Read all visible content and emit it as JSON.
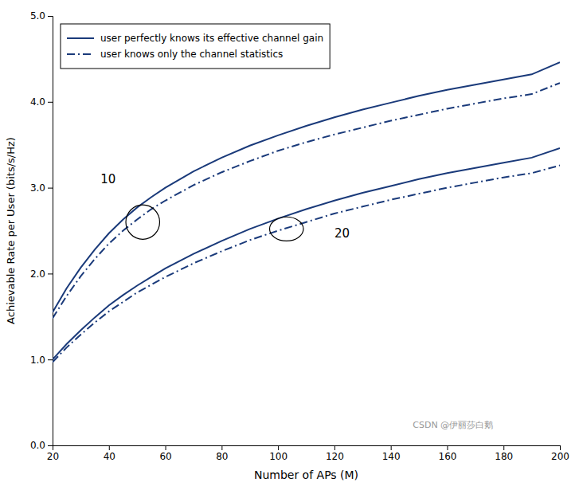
{
  "chart_data": {
    "type": "line",
    "xlabel": "Number of APs (M)",
    "ylabel": "Achievable Rate per User (bits/s/Hz)",
    "xlim": [
      20,
      200
    ],
    "ylim": [
      0.0,
      5.0
    ],
    "xticks": [
      20,
      40,
      60,
      80,
      100,
      120,
      140,
      160,
      180,
      200
    ],
    "yticks": [
      {
        "value": 0.0,
        "label": "0.0"
      },
      {
        "value": 1.0,
        "label": "1.0"
      },
      {
        "value": 2.0,
        "label": "2.0"
      },
      {
        "value": 3.0,
        "label": "3.0"
      },
      {
        "value": 4.0,
        "label": "4.0"
      },
      {
        "value": 5.0,
        "label": "5.0"
      }
    ],
    "color": "#1A3A7A",
    "legend": "upper-left",
    "grid": false,
    "series": [
      {
        "name": "user perfectly knows its effective channel gain",
        "line_style": "solid",
        "color": "#1A3A7A",
        "x": [
          20,
          25,
          30,
          35,
          40,
          45,
          50,
          55,
          60,
          70,
          80,
          90,
          100,
          110,
          120,
          130,
          140,
          150,
          160,
          170,
          180,
          190,
          200
        ],
        "values": [
          1.55,
          1.83,
          2.07,
          2.28,
          2.47,
          2.63,
          2.77,
          2.89,
          3.0,
          3.19,
          3.35,
          3.49,
          3.61,
          3.72,
          3.82,
          3.91,
          3.99,
          4.07,
          4.14,
          4.2,
          4.26,
          4.32,
          4.46
        ]
      },
      {
        "name": "user knows only the channel statistics",
        "line_style": "dashdot",
        "color": "#1A3A7A",
        "x": [
          20,
          25,
          30,
          35,
          40,
          45,
          50,
          55,
          60,
          70,
          80,
          90,
          100,
          110,
          120,
          130,
          140,
          150,
          160,
          170,
          180,
          190,
          200
        ],
        "values": [
          1.48,
          1.74,
          1.97,
          2.17,
          2.35,
          2.5,
          2.63,
          2.75,
          2.85,
          3.03,
          3.18,
          3.31,
          3.43,
          3.53,
          3.62,
          3.7,
          3.78,
          3.85,
          3.92,
          3.98,
          4.04,
          4.09,
          4.22
        ]
      },
      {
        "name": "user perfectly knows its effective channel gain",
        "line_style": "solid",
        "color": "#1A3A7A",
        "x": [
          20,
          25,
          30,
          35,
          40,
          45,
          50,
          55,
          60,
          70,
          80,
          90,
          100,
          110,
          120,
          130,
          140,
          150,
          160,
          170,
          180,
          190,
          200
        ],
        "values": [
          1.0,
          1.18,
          1.34,
          1.49,
          1.63,
          1.75,
          1.86,
          1.96,
          2.06,
          2.23,
          2.38,
          2.52,
          2.64,
          2.75,
          2.85,
          2.94,
          3.02,
          3.1,
          3.17,
          3.23,
          3.29,
          3.35,
          3.46
        ]
      },
      {
        "name": "user knows only the channel statistics",
        "line_style": "dashdot",
        "color": "#1A3A7A",
        "x": [
          20,
          25,
          30,
          35,
          40,
          45,
          50,
          55,
          60,
          70,
          80,
          90,
          100,
          110,
          120,
          130,
          140,
          150,
          160,
          170,
          180,
          190,
          200
        ],
        "values": [
          0.97,
          1.14,
          1.29,
          1.43,
          1.56,
          1.67,
          1.78,
          1.87,
          1.96,
          2.12,
          2.26,
          2.39,
          2.5,
          2.6,
          2.7,
          2.78,
          2.86,
          2.93,
          3.0,
          3.06,
          3.12,
          3.17,
          3.26
        ]
      }
    ],
    "ellipses": [
      {
        "x": 52,
        "y": 2.6,
        "width": 12,
        "height": 0.4
      },
      {
        "x": 103,
        "y": 2.52,
        "width": 12,
        "height": 0.28
      }
    ],
    "annotations": [
      {
        "text": "10",
        "x": 37,
        "y": 3.05
      },
      {
        "text": "20",
        "x": 120,
        "y": 2.42
      }
    ],
    "watermark": "CSDN @伊丽莎白鹅"
  }
}
